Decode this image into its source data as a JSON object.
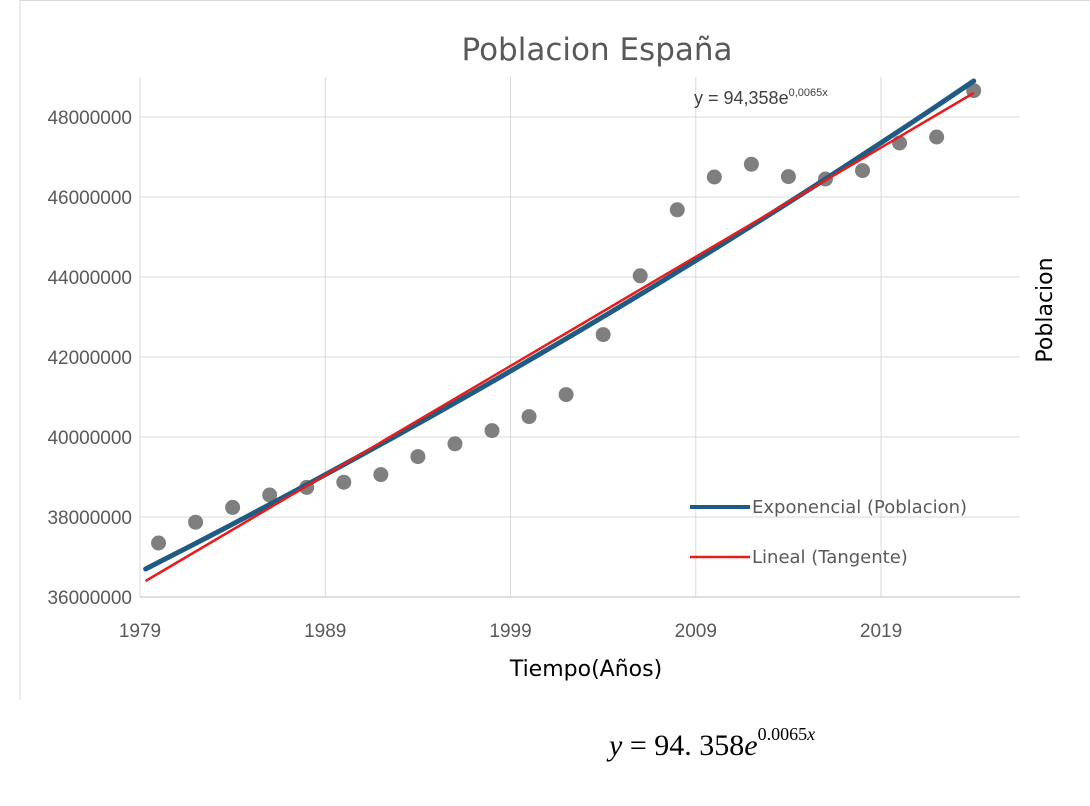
{
  "chart_data": {
    "type": "scatter",
    "title": "Poblacion España",
    "xlabel": "Tiempo(Años)",
    "ylabel": "Poblacion",
    "x_ticks": [
      1979,
      1989,
      1999,
      2009,
      2019
    ],
    "y_ticks": [
      36000000,
      38000000,
      40000000,
      42000000,
      44000000,
      46000000,
      48000000
    ],
    "xlim": [
      1979,
      2026.5
    ],
    "ylim": [
      36000000,
      49000000
    ],
    "grid": "vertical and horizontal major gridlines",
    "equation_label": "y = 94,358e",
    "equation_exponent": "0,0065x",
    "points": {
      "x": [
        1980,
        1982,
        1984,
        1986,
        1988,
        1990,
        1992,
        1994,
        1996,
        1998,
        2000,
        2002,
        2004,
        2006,
        2008,
        2010,
        2012,
        2014,
        2016,
        2018,
        2020,
        2022,
        2024
      ],
      "y": [
        37350000,
        37870000,
        38240000,
        38550000,
        38740000,
        38870000,
        39060000,
        39510000,
        39830000,
        40160000,
        40510000,
        41060000,
        42560000,
        44030000,
        45680000,
        46500000,
        46820000,
        46510000,
        46450000,
        46660000,
        47350000,
        47500000,
        48660000
      ],
      "color": "#7f7f7f"
    },
    "series": [
      {
        "name": "Exponencial (Poblacion)",
        "x": [
          1979.3,
          2024
        ],
        "y_start": 36700000,
        "y_end": 48900000,
        "color": "#1f5b82"
      },
      {
        "name": "Lineal (Tangente)",
        "x": [
          1979.3,
          2024
        ],
        "y_start": 36400000,
        "y_end": 48600000,
        "color": "#e81c1c"
      }
    ],
    "legend_position": "bottom-right"
  },
  "formula": {
    "lhs": "y",
    "equals": " = ",
    "coefficient": "94. 358",
    "base": "e",
    "exponent": "0.0065",
    "exponent_var": "x"
  }
}
